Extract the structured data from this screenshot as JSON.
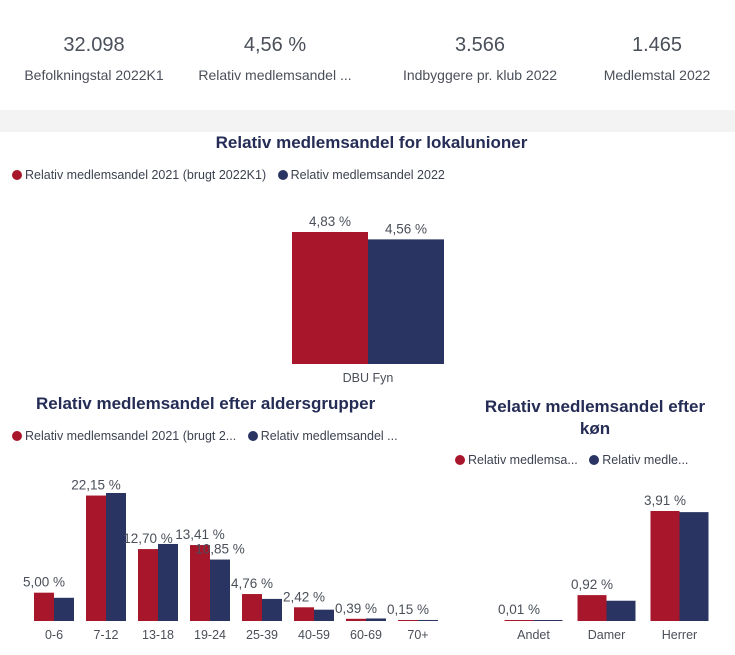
{
  "kpis": [
    {
      "value": "32.098",
      "label": "Befolkningstal 2022K1"
    },
    {
      "value": "4,56 %",
      "label": "Relativ medlemsandel ..."
    },
    {
      "value": "3.566",
      "label": "Indbyggere pr. klub 2022"
    },
    {
      "value": "1.465",
      "label": "Medlemstal 2022"
    }
  ],
  "colors": {
    "series2021": "#a8162b",
    "series2022": "#293462",
    "text": "#4a4f59"
  },
  "charts": {
    "local": {
      "legend": [
        "Relativ medlemsandel 2021 (brugt 2022K1)",
        "Relativ medlemsandel 2022"
      ]
    },
    "age": {
      "legend": [
        "Relativ medlemsandel 2021 (brugt 2...",
        "Relativ medlemsandel ..."
      ]
    },
    "gender": {
      "legend": [
        "Relativ medlemsa...",
        "Relativ medle..."
      ]
    }
  },
  "chart_data": [
    {
      "type": "bar",
      "title": "Relativ medlemsandel for lokalunioner",
      "categories": [
        "DBU Fyn"
      ],
      "series": [
        {
          "name": "Relativ medlemsandel 2021 (brugt 2022K1)",
          "values": [
            4.83
          ],
          "labels": [
            "4,83 %"
          ]
        },
        {
          "name": "Relativ medlemsandel 2022",
          "values": [
            4.56
          ],
          "labels": [
            "4,56 %"
          ]
        }
      ],
      "legend_position": "top-left"
    },
    {
      "type": "bar",
      "title": "Relativ medlemsandel efter aldersgrupper",
      "categories": [
        "0-6",
        "7-12",
        "13-18",
        "19-24",
        "25-39",
        "40-59",
        "60-69",
        "70+"
      ],
      "series": [
        {
          "name": "Relativ medlemsandel 2021 (brugt 2...",
          "values": [
            5.0,
            22.15,
            12.7,
            13.41,
            4.76,
            2.42,
            0.39,
            0.15
          ],
          "labels": [
            "5,00 %",
            "22,15 %",
            "12,70 %",
            "13,41 %",
            "4,76 %",
            "2,42 %",
            "0,39 %",
            "0,15 %"
          ]
        },
        {
          "name": "Relativ medlemsandel ...",
          "values": [
            4.1,
            22.6,
            13.6,
            10.85,
            3.9,
            2.0,
            0.45,
            0.18
          ],
          "labels": [
            "",
            "",
            "",
            "10,85 %",
            "",
            "",
            "",
            ""
          ]
        }
      ],
      "legend_position": "top-left"
    },
    {
      "type": "bar",
      "title": "Relativ medlemsandel efter køn",
      "title_lines": [
        "Relativ medlemsandel efter",
        "køn"
      ],
      "categories": [
        "Andet",
        "Damer",
        "Herrer"
      ],
      "series": [
        {
          "name": "Relativ medlemsa...",
          "values": [
            0.01,
            0.92,
            3.91
          ],
          "labels": [
            "0,01 %",
            "0,92 %",
            "3,91 %"
          ]
        },
        {
          "name": "Relativ medle...",
          "values": [
            0.01,
            0.72,
            3.87
          ],
          "labels": [
            "",
            "",
            ""
          ]
        }
      ],
      "legend_position": "top-left"
    }
  ]
}
